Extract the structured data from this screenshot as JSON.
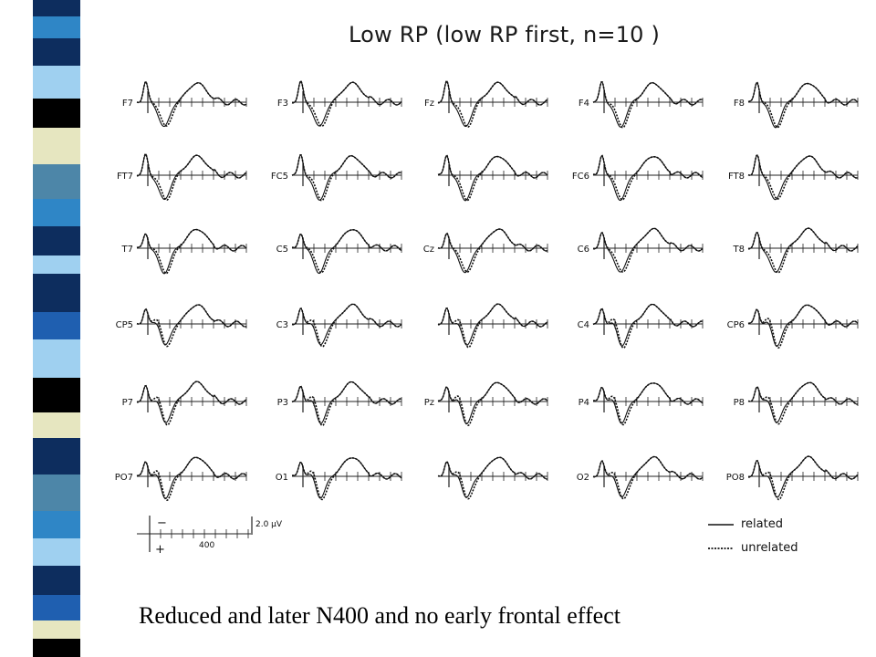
{
  "slide": {
    "title": "Low RP (low RP first, n=10 )",
    "caption": "Reduced and later N400 and no early frontal effect",
    "stripe_colors": [
      "#0d2d5e",
      "#2f86c6",
      "#9fd0f0",
      "#e6e6c0",
      "#000000",
      "#4d86a8",
      "#1f5fb0",
      "#ffffff"
    ]
  },
  "chart_data": {
    "type": "line",
    "title": "Low RP (low RP first, n=10 )",
    "grid": false,
    "legend_position": "bottom-right",
    "series": [
      {
        "name": "related",
        "style": "solid"
      },
      {
        "name": "unrelated",
        "style": "dotted"
      }
    ],
    "electrodes": [
      [
        "F7",
        "F3",
        "Fz",
        "F4",
        "F8"
      ],
      [
        "FT7",
        "FC5",
        "",
        "FC6",
        "FT8"
      ],
      [
        "T7",
        "C5",
        "Cz",
        "C6",
        "T8"
      ],
      [
        "CP5",
        "C3",
        "",
        "C4",
        "CP6"
      ],
      [
        "P7",
        "P3",
        "Pz",
        "P4",
        "P8"
      ],
      [
        "PO7",
        "O1",
        "",
        "O2",
        "PO8"
      ]
    ],
    "scale": {
      "amplitude_label": "2.0 µV",
      "time_label": "400",
      "negative_label": "−",
      "positive_label": "+"
    }
  }
}
